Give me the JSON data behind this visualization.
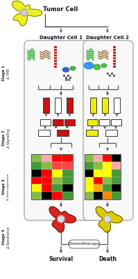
{
  "bg_color": "#ffffff",
  "tumor_cell_label": "Tumor Cell",
  "daughter1_label": "Daughter Cell 1",
  "daughter2_label": "Daughter Cell 2",
  "survival_label": "Survival",
  "death_label": "Death",
  "chemo_label": "Chemotherapy",
  "cell1_color": "#dd2222",
  "cell2_color": "#ddcc00",
  "sig1_tall_colors": [
    "#cc1111",
    "#ffffff",
    "#cc1111"
  ],
  "sig2_tall_colors": [
    "#eeee00",
    "#eeee00",
    "#ffffff"
  ],
  "sig1_row1": [
    "#ffffff",
    "#cc1111",
    "#cc1111"
  ],
  "sig1_row2": [
    "#ffffff",
    "#cc1111",
    "#cc1111"
  ],
  "sig1_bot": [
    "#ffffff",
    "#cc1111"
  ],
  "sig2_row1": [
    "#eeee00",
    "#ffffff",
    "#ffffff"
  ],
  "sig2_row2": [
    "#eeee00",
    "#ffffff",
    "#ffffff"
  ],
  "sig2_bot": [
    "#eeee00",
    "#ffffff"
  ],
  "heatmap1": [
    [
      "#88bb44",
      "#ffaaaa",
      "#ff0000",
      "#ff0000"
    ],
    [
      "#449933",
      "#88bb44",
      "#ff4444",
      "#ff4444"
    ],
    [
      "#000000",
      "#ff0000",
      "#ffff00",
      "#449933"
    ],
    [
      "#ff0000",
      "#ff0000",
      "#88bb44",
      "#449933"
    ],
    [
      "#ffff00",
      "#ff0000",
      "#449933",
      "#000000"
    ],
    [
      "#88bb44",
      "#000000",
      "#ff0000",
      "#449933"
    ]
  ],
  "heatmap2": [
    [
      "#88bb44",
      "#ffaaaa",
      "#ff0000",
      "#000000"
    ],
    [
      "#449933",
      "#88bb44",
      "#ffff00",
      "#ffaaaa"
    ],
    [
      "#000000",
      "#ffff00",
      "#ffff00",
      "#449933"
    ],
    [
      "#ffff00",
      "#ff0000",
      "#88bb44",
      "#449933"
    ],
    [
      "#ffff00",
      "#ffaa00",
      "#449933",
      "#000000"
    ],
    [
      "#88bb44",
      "#000000",
      "#ff8800",
      "#449933"
    ]
  ]
}
